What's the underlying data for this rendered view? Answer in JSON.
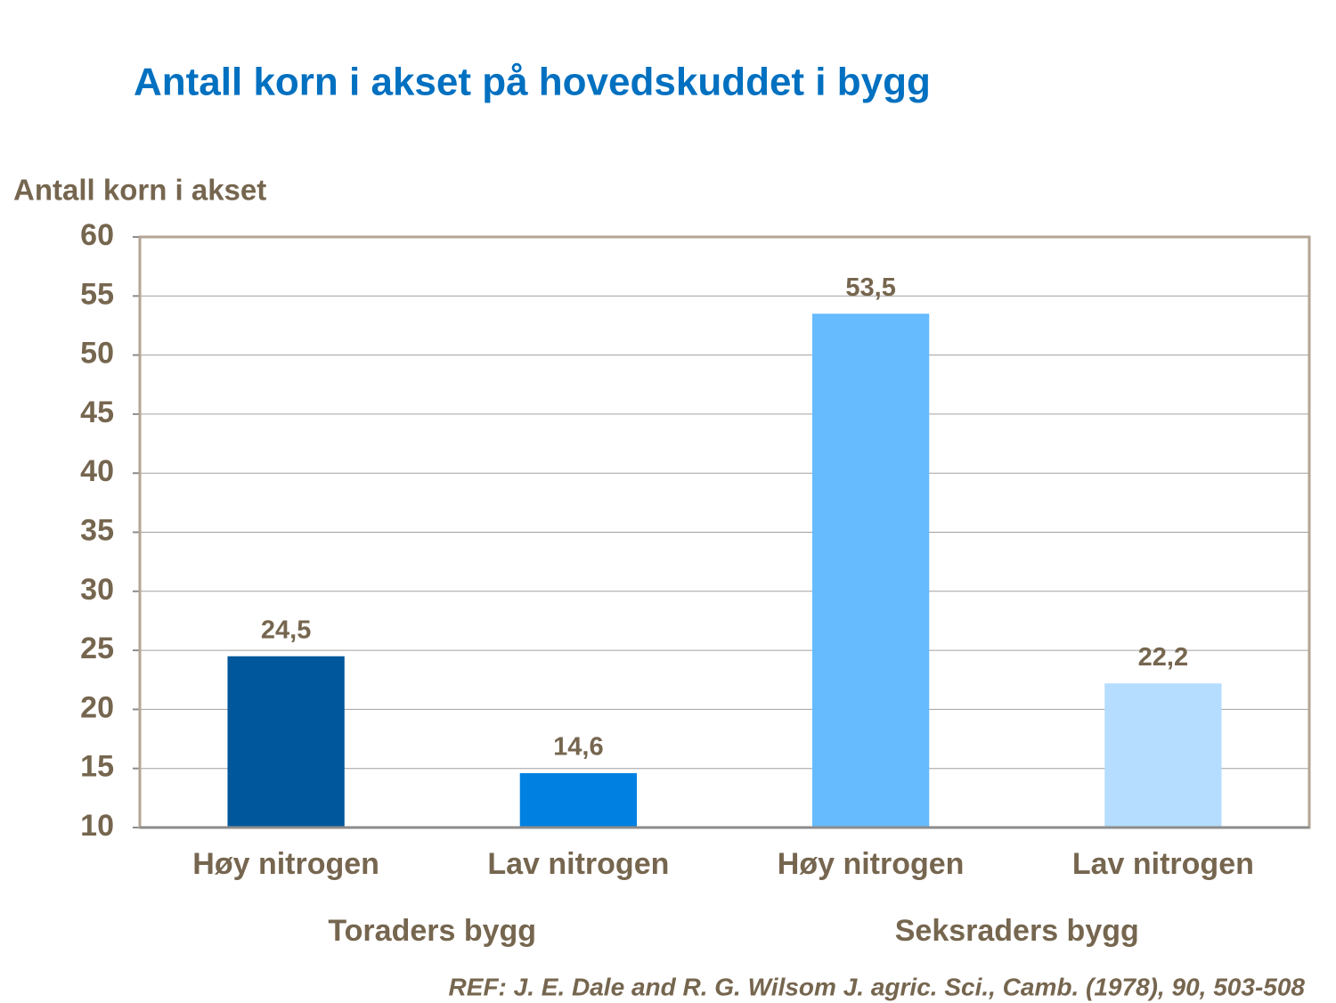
{
  "chart_data": {
    "type": "bar",
    "title": "Antall korn i akset på hovedskuddet i bygg",
    "y_label": "Antall korn i akset",
    "categories": [
      "Høy nitrogen",
      "Lav nitrogen",
      "Høy nitrogen",
      "Lav nitrogen"
    ],
    "group_labels": [
      "Toraders bygg",
      "Seksraders bygg"
    ],
    "values": [
      24.5,
      14.6,
      53.5,
      22.2
    ],
    "value_labels": [
      "24,5",
      "14,6",
      "53,5",
      "22,2"
    ],
    "colors": [
      "#00579b",
      "#0080e0",
      "#66bbff",
      "#b5ddff"
    ],
    "ylim": [
      10,
      60
    ],
    "yticks": [
      10,
      15,
      20,
      25,
      30,
      35,
      40,
      45,
      50,
      55,
      60
    ],
    "grid": true,
    "note": "REF: J. E. Dale and R. G. Wilsom J. agric. Sci., Camb. (1978), 90, 503-508"
  }
}
